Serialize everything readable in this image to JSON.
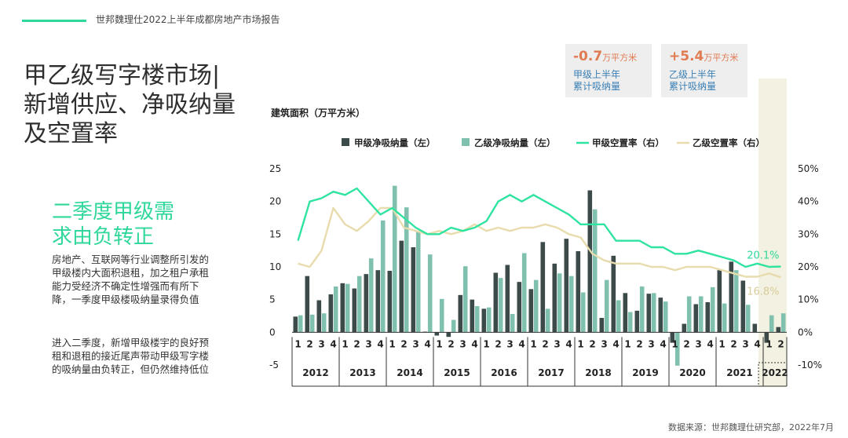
{
  "header": {
    "report_title": "世邦魏理仕2022上半年成都房地产市场报告",
    "main_title": "甲乙级写字楼市场|\n新增供应、净吸纳量\n及空置率"
  },
  "sidebar": {
    "highlight": "二季度甲级需\n求由负转正",
    "paragraph1": "房地产、互联网等行业调整所引发的甲级楼内大面积退租，加之租户承租能力受经济不确定性增强而有所下降，一季度甲级楼吸纳量录得负值",
    "paragraph2": "进入二季度，新增甲级楼宇的良好预租和退租的接近尾声带动甲级写字楼的吸纳量由负转正，但仍然维持低位"
  },
  "kpis": [
    {
      "value": "-0.7",
      "unit": "万平方米",
      "label": "甲级上半年\n累计吸纳量"
    },
    {
      "value": "+5.4",
      "unit": "万平方米",
      "label": "乙级上半年\n累计吸纳量"
    }
  ],
  "footer": {
    "source": "数据来源：世邦魏理仕研究部，2022年7月"
  },
  "colors": {
    "grade_a_bar": "#3d4a4a",
    "grade_b_bar": "#7fc1ae",
    "grade_a_line": "#2fe3a0",
    "grade_b_line": "#e8dcae",
    "accent": "#2fd89a"
  },
  "chart_data": {
    "type": "bar",
    "unit_label": "建筑面积（万平方米）",
    "years": [
      "2012",
      "2013",
      "2014",
      "2015",
      "2016",
      "2017",
      "2018",
      "2019",
      "2020",
      "2021",
      "2022"
    ],
    "quarters": [
      "1",
      "2",
      "3",
      "4",
      "1",
      "2",
      "3",
      "4",
      "1",
      "2",
      "3",
      "4",
      "1",
      "2",
      "3",
      "4",
      "1",
      "2",
      "3",
      "4",
      "1",
      "2",
      "3",
      "4",
      "1",
      "2",
      "3",
      "4",
      "1",
      "2",
      "3",
      "4",
      "1",
      "2",
      "3",
      "4",
      "1",
      "2",
      "3",
      "4",
      "1",
      "2"
    ],
    "ylim_left": [
      -5,
      25
    ],
    "yticks_left": [
      "25",
      "20",
      "15",
      "10",
      "5",
      "0",
      "-5"
    ],
    "ylim_right": [
      -0.1,
      0.5
    ],
    "yticks_right": [
      "50%",
      "40%",
      "30%",
      "20%",
      "10%",
      "0%",
      "-10%"
    ],
    "series": [
      {
        "name": "甲级净吸纳量（左）",
        "type": "bar",
        "values": [
          2.4,
          8.6,
          4.9,
          5.8,
          7.5,
          6.7,
          8.9,
          9.5,
          9.4,
          14.0,
          13.0,
          0.1,
          -0.5,
          -0.7,
          5.7,
          5.0,
          3.6,
          9.1,
          10.3,
          7.7,
          6.6,
          13.8,
          10.5,
          14.3,
          12.4,
          21.7,
          2.2,
          11.7,
          6.0,
          3.3,
          5.9,
          5.3,
          -1.6,
          1.3,
          4.3,
          4.6,
          9.5,
          10.8,
          7.9,
          1.3,
          -1.6,
          0.8
        ]
      },
      {
        "name": "乙级净吸纳量（左）",
        "type": "bar",
        "values": [
          2.6,
          2.7,
          2.9,
          7.0,
          7.4,
          8.6,
          11.3,
          17.1,
          22.4,
          19.1,
          15.5,
          11.9,
          5.1,
          1.9,
          10.1,
          4.0,
          3.8,
          8.3,
          2.8,
          12.1,
          8.0,
          3.6,
          9.0,
          8.6,
          6.1,
          18.8,
          8.0,
          4.9,
          3.1,
          7.0,
          6.0,
          4.7,
          -5.1,
          5.5,
          5.5,
          6.9,
          4.4,
          9.5,
          4.2,
          0.0,
          2.6,
          2.9
        ]
      },
      {
        "name": "甲级空置率（右）",
        "type": "line",
        "values": [
          0.28,
          0.4,
          0.41,
          0.43,
          0.42,
          0.44,
          0.4,
          0.36,
          0.38,
          0.35,
          0.32,
          0.3,
          0.3,
          0.32,
          0.31,
          0.32,
          0.34,
          0.4,
          0.42,
          0.4,
          0.42,
          0.4,
          0.38,
          0.36,
          0.33,
          0.33,
          0.33,
          0.28,
          0.28,
          0.28,
          0.26,
          0.26,
          0.24,
          0.24,
          0.25,
          0.24,
          0.23,
          0.22,
          0.2,
          0.21,
          0.2,
          0.201
        ]
      },
      {
        "name": "乙级空置率（右）",
        "type": "line",
        "values": [
          0.21,
          0.2,
          0.25,
          0.38,
          0.33,
          0.31,
          0.34,
          0.38,
          0.38,
          0.32,
          0.31,
          0.3,
          0.31,
          0.3,
          0.31,
          0.33,
          0.31,
          0.32,
          0.31,
          0.32,
          0.32,
          0.33,
          0.32,
          0.3,
          0.29,
          0.24,
          0.22,
          0.21,
          0.21,
          0.21,
          0.2,
          0.2,
          0.19,
          0.2,
          0.2,
          0.2,
          0.19,
          0.18,
          0.17,
          0.17,
          0.18,
          0.168
        ]
      }
    ],
    "legend": [
      "甲级净吸纳量（左）",
      "乙级净吸纳量（左）",
      "甲级空置率（右）",
      "乙级空置率（右）"
    ],
    "annotations": [
      {
        "text": "20.1%",
        "series": "甲级空置率（右）"
      },
      {
        "text": "16.8%",
        "series": "乙级空置率（右）"
      }
    ]
  }
}
